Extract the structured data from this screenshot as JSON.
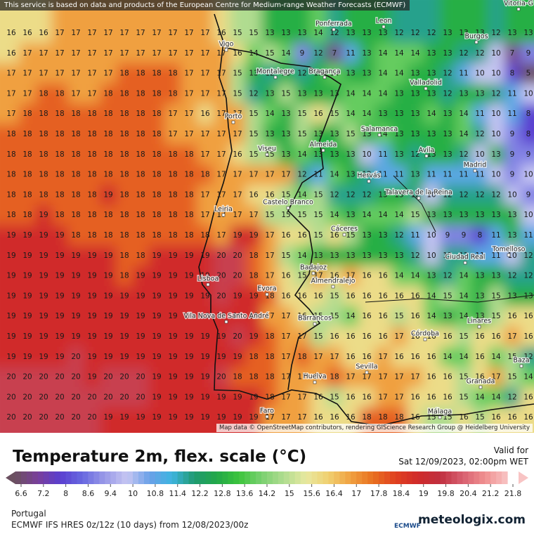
{
  "banner": "This service is based on data and products of the European Centre for Medium-range Weather Forecasts (ECMWF)",
  "attribution": "Map data © OpenStreetMap contributors, rendering GIScience Research Group @ Heidelberg University",
  "title": "Temperature 2m, flex. scale (°C)",
  "valid_label": "Valid for",
  "valid_time": "Sat 12/09/2023, 02:00pm WET",
  "region": "Portugal",
  "model": "ECMWF IFS HRES 0z/12z (10 days) from 12/08/2023/00z",
  "brand": "meteologix.com",
  "ecmwf": "ECMWF",
  "legend_ticks": [
    6.6,
    7.2,
    8,
    8.6,
    9.4,
    10,
    10.8,
    11.4,
    12.2,
    12.8,
    13.6,
    14.2,
    15,
    15.6,
    16.4,
    17,
    17.8,
    18.4,
    19,
    19.8,
    20.4,
    21.2,
    21.8
  ],
  "cities": [
    "Vitoria-G",
    "Ponferrada",
    "Leon",
    "Burgos",
    "Vigo",
    "Montalegre",
    "Bragança",
    "Valladolid",
    "Porto",
    "Salamanca",
    "Viseu",
    "Almeida",
    "Avila",
    "Madrid",
    "Hervás",
    "Talavera de la Reina",
    "Castelo Branco",
    "Leiria",
    "Cáceres",
    "Ciudad Real",
    "Tomelloso",
    "Lisboa",
    "Badajoz",
    "Almendralejo",
    "Evora",
    "Vila Nova de Santo André",
    "Barrancos",
    "Linares",
    "Córdoba",
    "Sevilla",
    "Baza",
    "Granada",
    "Huelva",
    "Faro",
    "Málaga"
  ],
  "grid": [
    [
      16,
      16,
      16,
      17,
      17,
      17,
      17,
      17,
      17,
      17,
      17,
      17,
      17,
      16,
      15,
      15,
      13,
      13,
      13,
      14,
      12,
      13,
      13,
      13,
      12,
      12,
      12,
      13,
      13,
      13,
      12,
      13,
      13
    ],
    [
      16,
      17,
      17,
      17,
      17,
      17,
      17,
      17,
      17,
      17,
      17,
      17,
      17,
      17,
      16,
      14,
      15,
      14,
      9,
      12,
      7,
      11,
      13,
      14,
      14,
      14,
      13,
      13,
      12,
      12,
      10,
      7,
      9
    ],
    [
      17,
      17,
      17,
      17,
      17,
      17,
      17,
      18,
      18,
      18,
      18,
      17,
      17,
      17,
      15,
      13,
      12,
      13,
      12,
      13,
      14,
      13,
      13,
      14,
      14,
      13,
      13,
      12,
      11,
      10,
      10,
      8,
      5
    ],
    [
      17,
      17,
      18,
      18,
      17,
      17,
      18,
      18,
      18,
      18,
      18,
      17,
      17,
      17,
      15,
      12,
      13,
      15,
      13,
      13,
      13,
      14,
      14,
      14,
      13,
      13,
      13,
      12,
      13,
      13,
      12,
      11,
      10
    ],
    [
      17,
      18,
      18,
      18,
      18,
      18,
      18,
      18,
      18,
      18,
      17,
      17,
      16,
      17,
      17,
      15,
      14,
      13,
      15,
      16,
      15,
      14,
      14,
      13,
      13,
      13,
      14,
      13,
      14,
      11,
      10,
      11,
      8
    ],
    [
      18,
      18,
      18,
      18,
      18,
      18,
      18,
      18,
      18,
      18,
      17,
      17,
      17,
      17,
      17,
      15,
      13,
      13,
      15,
      13,
      13,
      15,
      13,
      14,
      13,
      13,
      13,
      13,
      14,
      12,
      10,
      9,
      8
    ],
    [
      18,
      18,
      18,
      18,
      18,
      18,
      18,
      18,
      18,
      18,
      18,
      18,
      17,
      17,
      16,
      15,
      15,
      13,
      14,
      13,
      13,
      13,
      10,
      11,
      13,
      12,
      13,
      13,
      12,
      10,
      13,
      9,
      9
    ],
    [
      18,
      18,
      18,
      18,
      18,
      18,
      18,
      18,
      18,
      18,
      18,
      18,
      18,
      17,
      17,
      17,
      17,
      17,
      12,
      11,
      14,
      13,
      12,
      11,
      11,
      13,
      11,
      11,
      11,
      11,
      10,
      9,
      10
    ],
    [
      18,
      18,
      18,
      18,
      18,
      18,
      19,
      18,
      18,
      18,
      18,
      18,
      17,
      17,
      17,
      16,
      16,
      15,
      14,
      15,
      12,
      12,
      12,
      13,
      13,
      12,
      10,
      12,
      12,
      12,
      12,
      10,
      9
    ],
    [
      18,
      18,
      19,
      18,
      18,
      18,
      18,
      18,
      18,
      18,
      18,
      18,
      17,
      17,
      17,
      17,
      15,
      15,
      15,
      15,
      14,
      13,
      14,
      14,
      14,
      15,
      13,
      13,
      13,
      13,
      13,
      13,
      10
    ],
    [
      19,
      19,
      19,
      19,
      18,
      18,
      18,
      18,
      18,
      18,
      18,
      18,
      18,
      17,
      19,
      19,
      17,
      16,
      16,
      15,
      16,
      15,
      13,
      13,
      12,
      11,
      10,
      9,
      9,
      8,
      11,
      13,
      11
    ],
    [
      19,
      19,
      19,
      19,
      19,
      19,
      19,
      18,
      18,
      19,
      19,
      19,
      19,
      20,
      20,
      18,
      17,
      15,
      14,
      13,
      13,
      13,
      13,
      13,
      13,
      12,
      10,
      12,
      12,
      11,
      11,
      10,
      12
    ],
    [
      19,
      19,
      19,
      19,
      19,
      19,
      19,
      18,
      19,
      19,
      19,
      19,
      19,
      20,
      20,
      18,
      17,
      16,
      15,
      17,
      16,
      17,
      16,
      16,
      14,
      14,
      13,
      12,
      14,
      13,
      13,
      12,
      12
    ],
    [
      19,
      19,
      19,
      19,
      19,
      19,
      19,
      19,
      19,
      19,
      19,
      19,
      19,
      20,
      19,
      19,
      18,
      16,
      16,
      16,
      15,
      16,
      16,
      16,
      16,
      16,
      14,
      15,
      14,
      13,
      15,
      13,
      13
    ],
    [
      19,
      19,
      19,
      19,
      19,
      19,
      19,
      19,
      19,
      19,
      19,
      19,
      19,
      19,
      19,
      19,
      17,
      17,
      16,
      15,
      15,
      14,
      16,
      16,
      15,
      16,
      14,
      13,
      14,
      13,
      15,
      16,
      16
    ],
    [
      19,
      19,
      19,
      19,
      19,
      19,
      19,
      19,
      19,
      19,
      19,
      19,
      19,
      19,
      20,
      19,
      18,
      17,
      17,
      15,
      16,
      16,
      16,
      16,
      17,
      16,
      16,
      16,
      15,
      16,
      16,
      17,
      16
    ],
    [
      19,
      19,
      19,
      19,
      20,
      19,
      19,
      19,
      19,
      19,
      19,
      19,
      19,
      19,
      19,
      18,
      18,
      17,
      18,
      17,
      17,
      16,
      16,
      17,
      16,
      16,
      16,
      14,
      14,
      16,
      14,
      15,
      12
    ],
    [
      20,
      20,
      20,
      20,
      20,
      19,
      20,
      20,
      20,
      19,
      19,
      19,
      19,
      20,
      18,
      18,
      18,
      17,
      17,
      17,
      18,
      17,
      17,
      17,
      17,
      17,
      16,
      16,
      15,
      16,
      17,
      15,
      14
    ],
    [
      20,
      20,
      20,
      20,
      20,
      20,
      20,
      20,
      20,
      19,
      19,
      19,
      19,
      19,
      19,
      19,
      18,
      17,
      17,
      16,
      15,
      16,
      16,
      17,
      17,
      16,
      16,
      16,
      15,
      14,
      14,
      12,
      16
    ],
    [
      20,
      20,
      20,
      20,
      20,
      20,
      19,
      19,
      19,
      19,
      19,
      19,
      19,
      19,
      19,
      19,
      17,
      17,
      17,
      16,
      16,
      16,
      18,
      18,
      18,
      16,
      15,
      15,
      16,
      15,
      16,
      16,
      16
    ]
  ]
}
